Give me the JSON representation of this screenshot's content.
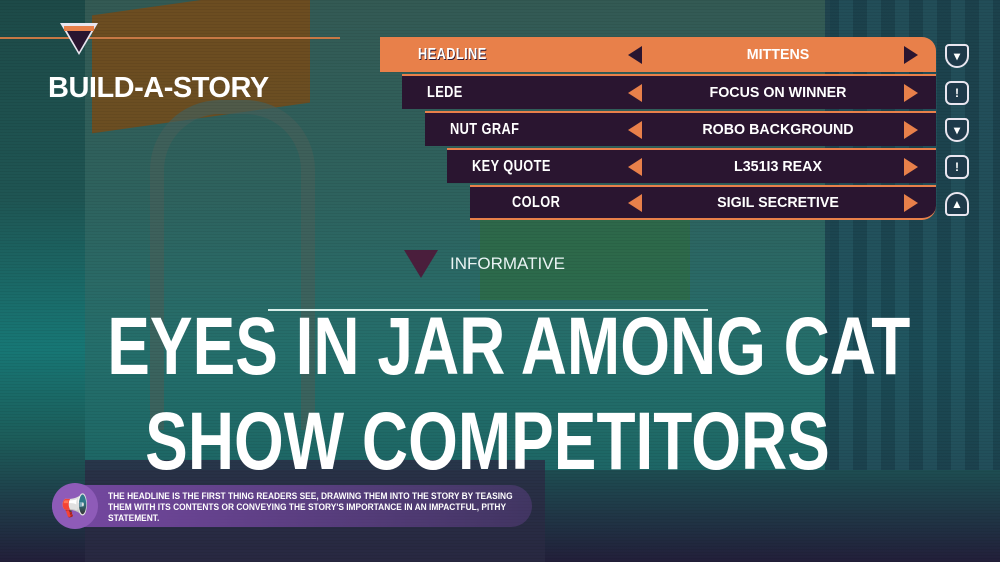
{
  "title": "BUILD-A-STORY",
  "menu": {
    "rows": [
      {
        "label": "HEADLINE",
        "value": "MITTENS",
        "icon": "alien-triangle-icon",
        "selected": true
      },
      {
        "label": "LEDE",
        "value": "FOCUS ON WINNER",
        "icon": "exclamation-hexagon-icon"
      },
      {
        "label": "NUT GRAF",
        "value": "ROBO BACKGROUND",
        "icon": "alien-triangle-icon"
      },
      {
        "label": "KEY QUOTE",
        "value": "L351I3 REAX",
        "icon": "exclamation-hexagon-icon"
      },
      {
        "label": "COLOR",
        "value": "SIGIL SECRETIVE",
        "icon": "flame-triangle-icon"
      }
    ]
  },
  "tone": {
    "label": "INFORMATIVE",
    "icon": "alien-triangle-icon"
  },
  "headline": {
    "line1": "EYES IN JAR AMONG CAT",
    "line2": "SHOW COMPETITORS"
  },
  "tip": {
    "icon": "megaphone-icon",
    "text": "THE HEADLINE IS THE FIRST THING READERS SEE, DRAWING THEM INTO THE STORY BY TEASING THEM WITH ITS CONTENTS OR CONVEYING THE STORY'S IMPORTANCE IN AN IMPACTFUL, PITHY STATEMENT."
  },
  "colors": {
    "accent": "#e8804a",
    "panel": "#2a1530",
    "tip": "#8e5bb8"
  }
}
